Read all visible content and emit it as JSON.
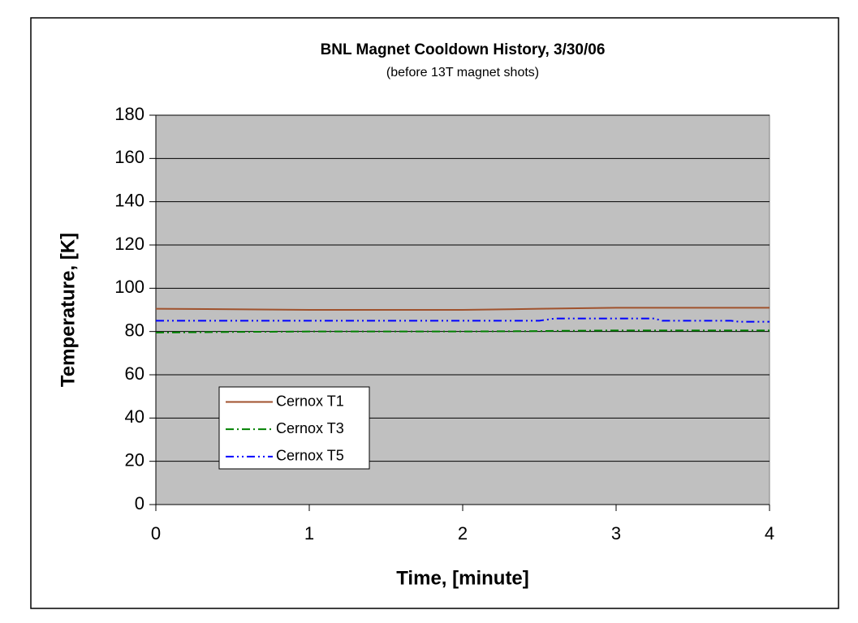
{
  "chart_data": {
    "type": "line",
    "title": "BNL Magnet Cooldown History, 3/30/06",
    "subtitle": "(before 13T magnet shots)",
    "xlabel": "Time, [minute]",
    "ylabel": "Temperature, [K]",
    "x": [
      0,
      0.5,
      1,
      1.5,
      2,
      2.5,
      2.6,
      3,
      3.25,
      3.3,
      3.75,
      3.8,
      4
    ],
    "series": [
      {
        "name": "Cernox T1",
        "color": "#a0522d",
        "line_style": "solid",
        "values": [
          90.5,
          90.3,
          90,
          90,
          90,
          90.5,
          90.6,
          91,
          91,
          91,
          91,
          91,
          91
        ]
      },
      {
        "name": "Cernox T3",
        "color": "#008000",
        "line_style": "dashdot",
        "values": [
          79.5,
          79.8,
          80,
          80,
          80,
          80.2,
          80.3,
          80.5,
          80.5,
          80.5,
          80.5,
          80.5,
          80.5
        ]
      },
      {
        "name": "Cernox T5",
        "color": "#0000ff",
        "line_style": "dashdotdot",
        "values": [
          85,
          85,
          85,
          85,
          85,
          85,
          86,
          86,
          86,
          85,
          85,
          84.5,
          84.5
        ]
      }
    ],
    "xlim": [
      0,
      4
    ],
    "xticks": [
      0,
      1,
      2,
      3,
      4
    ],
    "ylim": [
      0,
      180
    ],
    "yticks": [
      0,
      20,
      40,
      60,
      80,
      100,
      120,
      140,
      160,
      180
    ],
    "grid": true,
    "plot_background": "#c0c0c0",
    "legend": "lower left"
  }
}
